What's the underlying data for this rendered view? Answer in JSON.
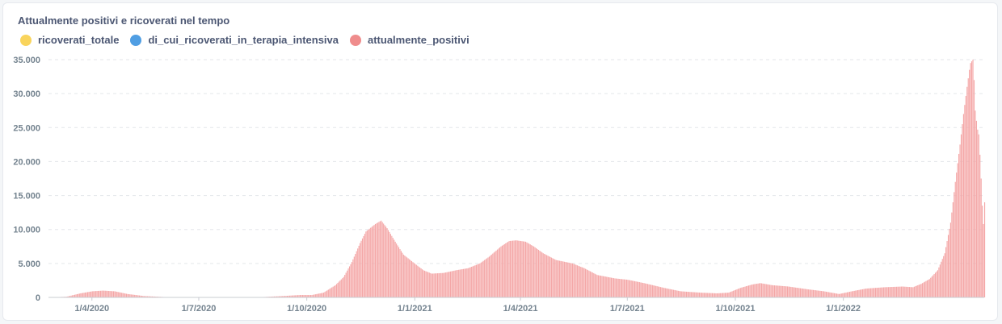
{
  "chart": {
    "title": "Attualmente positivi e ricoverati nel tempo",
    "legend": [
      {
        "label": "ricoverati_totale",
        "color": "#f9d45c"
      },
      {
        "label": "di_cui_ricoverati_in_terapia_intensiva",
        "color": "#509ee3"
      },
      {
        "label": "attualmente_positivi",
        "color": "#ef8c8c"
      }
    ]
  },
  "chart_data": {
    "type": "bar",
    "title": "Attualmente positivi e ricoverati nel tempo",
    "xlabel": "",
    "ylabel": "",
    "ylim": [
      0,
      35000
    ],
    "y_ticks": [
      "0",
      "5.000",
      "10.000",
      "15.000",
      "20.000",
      "25.000",
      "30.000",
      "35.000"
    ],
    "x_tick_labels": [
      "1/4/2020",
      "1/7/2020",
      "1/10/2020",
      "1/1/2021",
      "1/4/2021",
      "1/7/2021",
      "1/10/2021",
      "1/1/2022"
    ],
    "x_range": [
      "2020-02-24",
      "2022-05-01"
    ],
    "grid": true,
    "legend_position": "top-left",
    "series": [
      {
        "name": "attualmente_positivi",
        "color": "#f4a7a7",
        "points": [
          [
            "2020-02-24",
            0
          ],
          [
            "2020-03-10",
            100
          ],
          [
            "2020-03-22",
            600
          ],
          [
            "2020-04-01",
            900
          ],
          [
            "2020-04-10",
            1000
          ],
          [
            "2020-04-20",
            900
          ],
          [
            "2020-05-01",
            500
          ],
          [
            "2020-05-15",
            200
          ],
          [
            "2020-06-01",
            60
          ],
          [
            "2020-07-01",
            30
          ],
          [
            "2020-08-01",
            30
          ],
          [
            "2020-08-25",
            60
          ],
          [
            "2020-09-10",
            200
          ],
          [
            "2020-09-25",
            350
          ],
          [
            "2020-10-05",
            350
          ],
          [
            "2020-10-15",
            700
          ],
          [
            "2020-10-25",
            1800
          ],
          [
            "2020-11-01",
            3000
          ],
          [
            "2020-11-08",
            5200
          ],
          [
            "2020-11-15",
            8000
          ],
          [
            "2020-11-20",
            9700
          ],
          [
            "2020-11-28",
            10800
          ],
          [
            "2020-12-03",
            11300
          ],
          [
            "2020-12-08",
            10200
          ],
          [
            "2020-12-15",
            8200
          ],
          [
            "2020-12-22",
            6300
          ],
          [
            "2020-12-30",
            5200
          ],
          [
            "2021-01-08",
            4000
          ],
          [
            "2021-01-15",
            3500
          ],
          [
            "2021-01-25",
            3600
          ],
          [
            "2021-02-05",
            4000
          ],
          [
            "2021-02-15",
            4300
          ],
          [
            "2021-02-25",
            5000
          ],
          [
            "2021-03-05",
            6000
          ],
          [
            "2021-03-15",
            7500
          ],
          [
            "2021-03-22",
            8300
          ],
          [
            "2021-03-28",
            8400
          ],
          [
            "2021-04-05",
            8200
          ],
          [
            "2021-04-12",
            7500
          ],
          [
            "2021-04-20",
            6500
          ],
          [
            "2021-05-01",
            5500
          ],
          [
            "2021-05-15",
            5000
          ],
          [
            "2021-05-25",
            4300
          ],
          [
            "2021-06-05",
            3300
          ],
          [
            "2021-06-20",
            2800
          ],
          [
            "2021-07-01",
            2600
          ],
          [
            "2021-07-15",
            2100
          ],
          [
            "2021-08-01",
            1400
          ],
          [
            "2021-08-15",
            900
          ],
          [
            "2021-09-01",
            700
          ],
          [
            "2021-09-15",
            600
          ],
          [
            "2021-09-25",
            700
          ],
          [
            "2021-10-05",
            1400
          ],
          [
            "2021-10-15",
            1900
          ],
          [
            "2021-10-22",
            2100
          ],
          [
            "2021-11-01",
            1800
          ],
          [
            "2021-11-15",
            1600
          ],
          [
            "2021-12-01",
            1200
          ],
          [
            "2021-12-15",
            900
          ],
          [
            "2021-12-28",
            500
          ],
          [
            "2022-01-08",
            900
          ],
          [
            "2022-01-20",
            1300
          ],
          [
            "2022-02-05",
            1500
          ],
          [
            "2022-02-20",
            1600
          ],
          [
            "2022-03-01",
            1500
          ],
          [
            "2022-03-08",
            2000
          ],
          [
            "2022-03-15",
            2700
          ],
          [
            "2022-03-22",
            4000
          ],
          [
            "2022-03-28",
            6500
          ],
          [
            "2022-04-02",
            11000
          ],
          [
            "2022-04-06",
            17000
          ],
          [
            "2022-04-10",
            22500
          ],
          [
            "2022-04-13",
            27000
          ],
          [
            "2022-04-16",
            31000
          ],
          [
            "2022-04-18",
            33500
          ],
          [
            "2022-04-19",
            34500
          ],
          [
            "2022-04-21",
            35000
          ],
          [
            "2022-04-22",
            32000
          ],
          [
            "2022-04-23",
            27500
          ],
          [
            "2022-04-24",
            26000
          ],
          [
            "2022-04-25",
            24700
          ],
          [
            "2022-04-26",
            24000
          ],
          [
            "2022-04-27",
            21000
          ],
          [
            "2022-04-28",
            17500
          ],
          [
            "2022-04-29",
            13500
          ],
          [
            "2022-04-30",
            10800
          ],
          [
            "2022-04-30",
            9000
          ],
          [
            "2022-05-01",
            14000
          ]
        ]
      }
    ]
  }
}
